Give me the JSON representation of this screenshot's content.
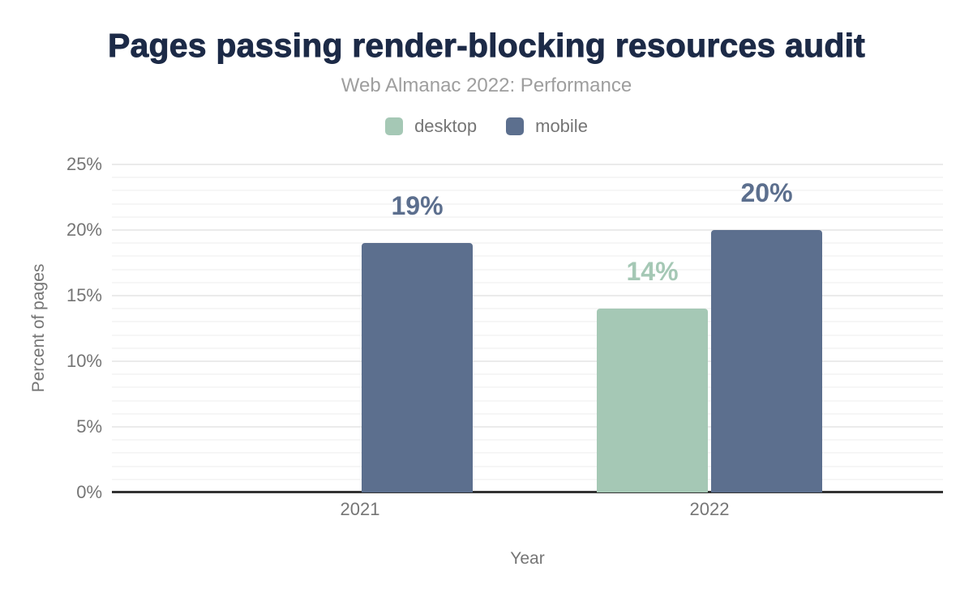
{
  "title": "Pages passing render-blocking resources audit",
  "subtitle": "Web Almanac 2022: Performance",
  "legend": {
    "position": "top",
    "items": [
      {
        "label": "desktop",
        "color": "#a5c8b5"
      },
      {
        "label": "mobile",
        "color": "#5c6f8e"
      }
    ]
  },
  "chart_data": {
    "type": "bar",
    "title": "Pages passing render-blocking resources audit",
    "subtitle": "Web Almanac 2022: Performance",
    "categories": [
      "2021",
      "2022"
    ],
    "series": [
      {
        "name": "desktop",
        "color": "#a5c8b5",
        "values": [
          null,
          14
        ],
        "data_labels": [
          null,
          "14%"
        ]
      },
      {
        "name": "mobile",
        "color": "#5c6f8e",
        "values": [
          19,
          20
        ],
        "data_labels": [
          "19%",
          "20%"
        ]
      }
    ],
    "xlabel": "Year",
    "ylabel": "Percent of pages",
    "ylim": [
      0,
      25
    ],
    "yticks": [
      {
        "value": 0,
        "label": "0%"
      },
      {
        "value": 5,
        "label": "5%"
      },
      {
        "value": 10,
        "label": "10%"
      },
      {
        "value": 15,
        "label": "15%"
      },
      {
        "value": 20,
        "label": "20%"
      },
      {
        "value": 25,
        "label": "25%"
      }
    ],
    "grid": "horizontal, minor every 1%, major every 5%",
    "legend_position": "top"
  },
  "colors": {
    "title": "#1c2a47",
    "subtitle": "#9e9e9e",
    "axis_text": "#757575",
    "axis_line": "#333333",
    "grid_minor": "#f6f6f6",
    "grid_major": "#ebebeb",
    "desktop": "#a5c8b5",
    "mobile": "#5c6f8e",
    "background": "#ffffff"
  }
}
